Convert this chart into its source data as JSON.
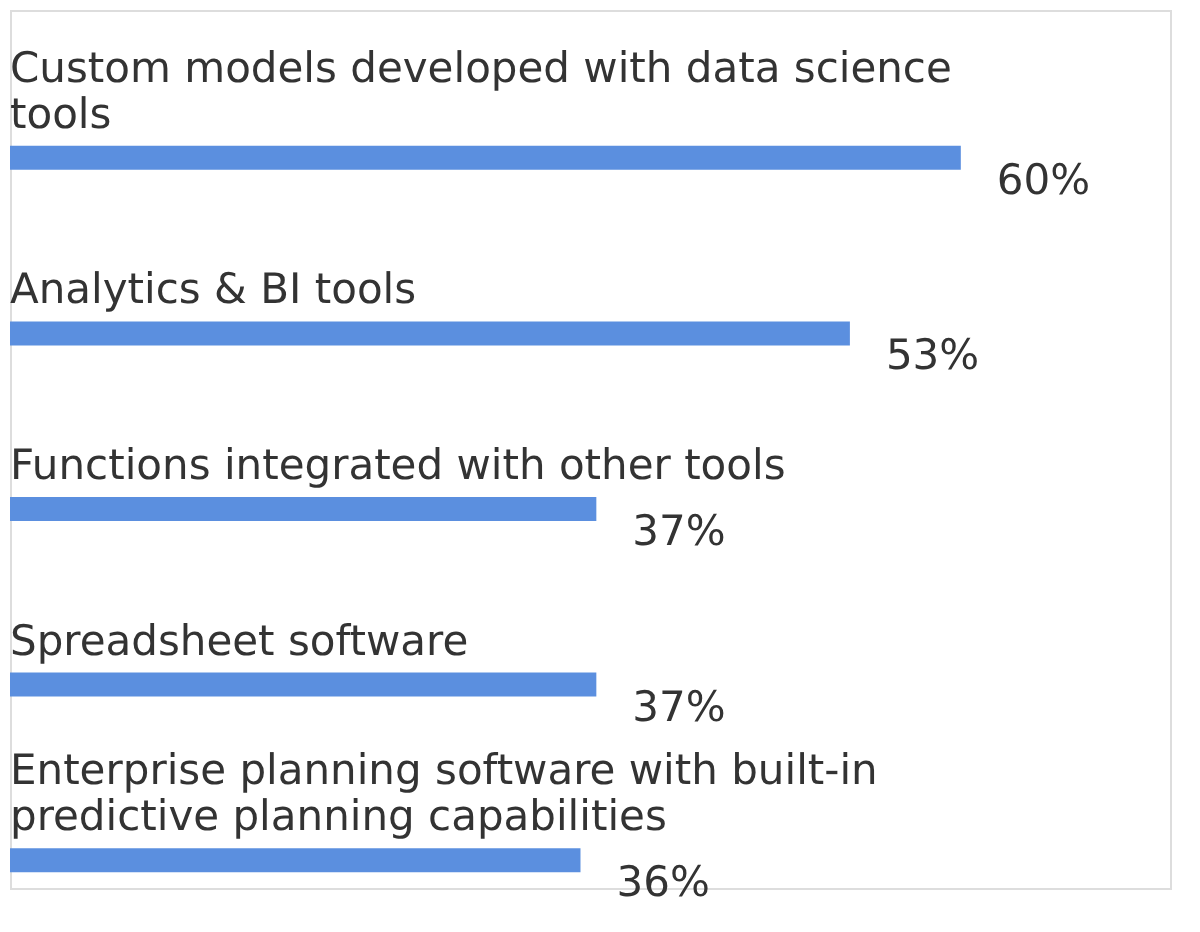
{
  "chart_data": {
    "type": "bar",
    "orientation": "horizontal",
    "categories": [
      "Custom models developed with data science tools",
      "Analytics & BI tools",
      "Functions integrated with other tools",
      "Spreadsheet software",
      "Enterprise planning software with built-in predictive planning capabilities"
    ],
    "values": [
      60,
      53,
      37,
      37,
      36
    ],
    "value_labels": [
      "60%",
      "53%",
      "37%",
      "37%",
      "36%"
    ],
    "color": "#5b8fdf"
  }
}
